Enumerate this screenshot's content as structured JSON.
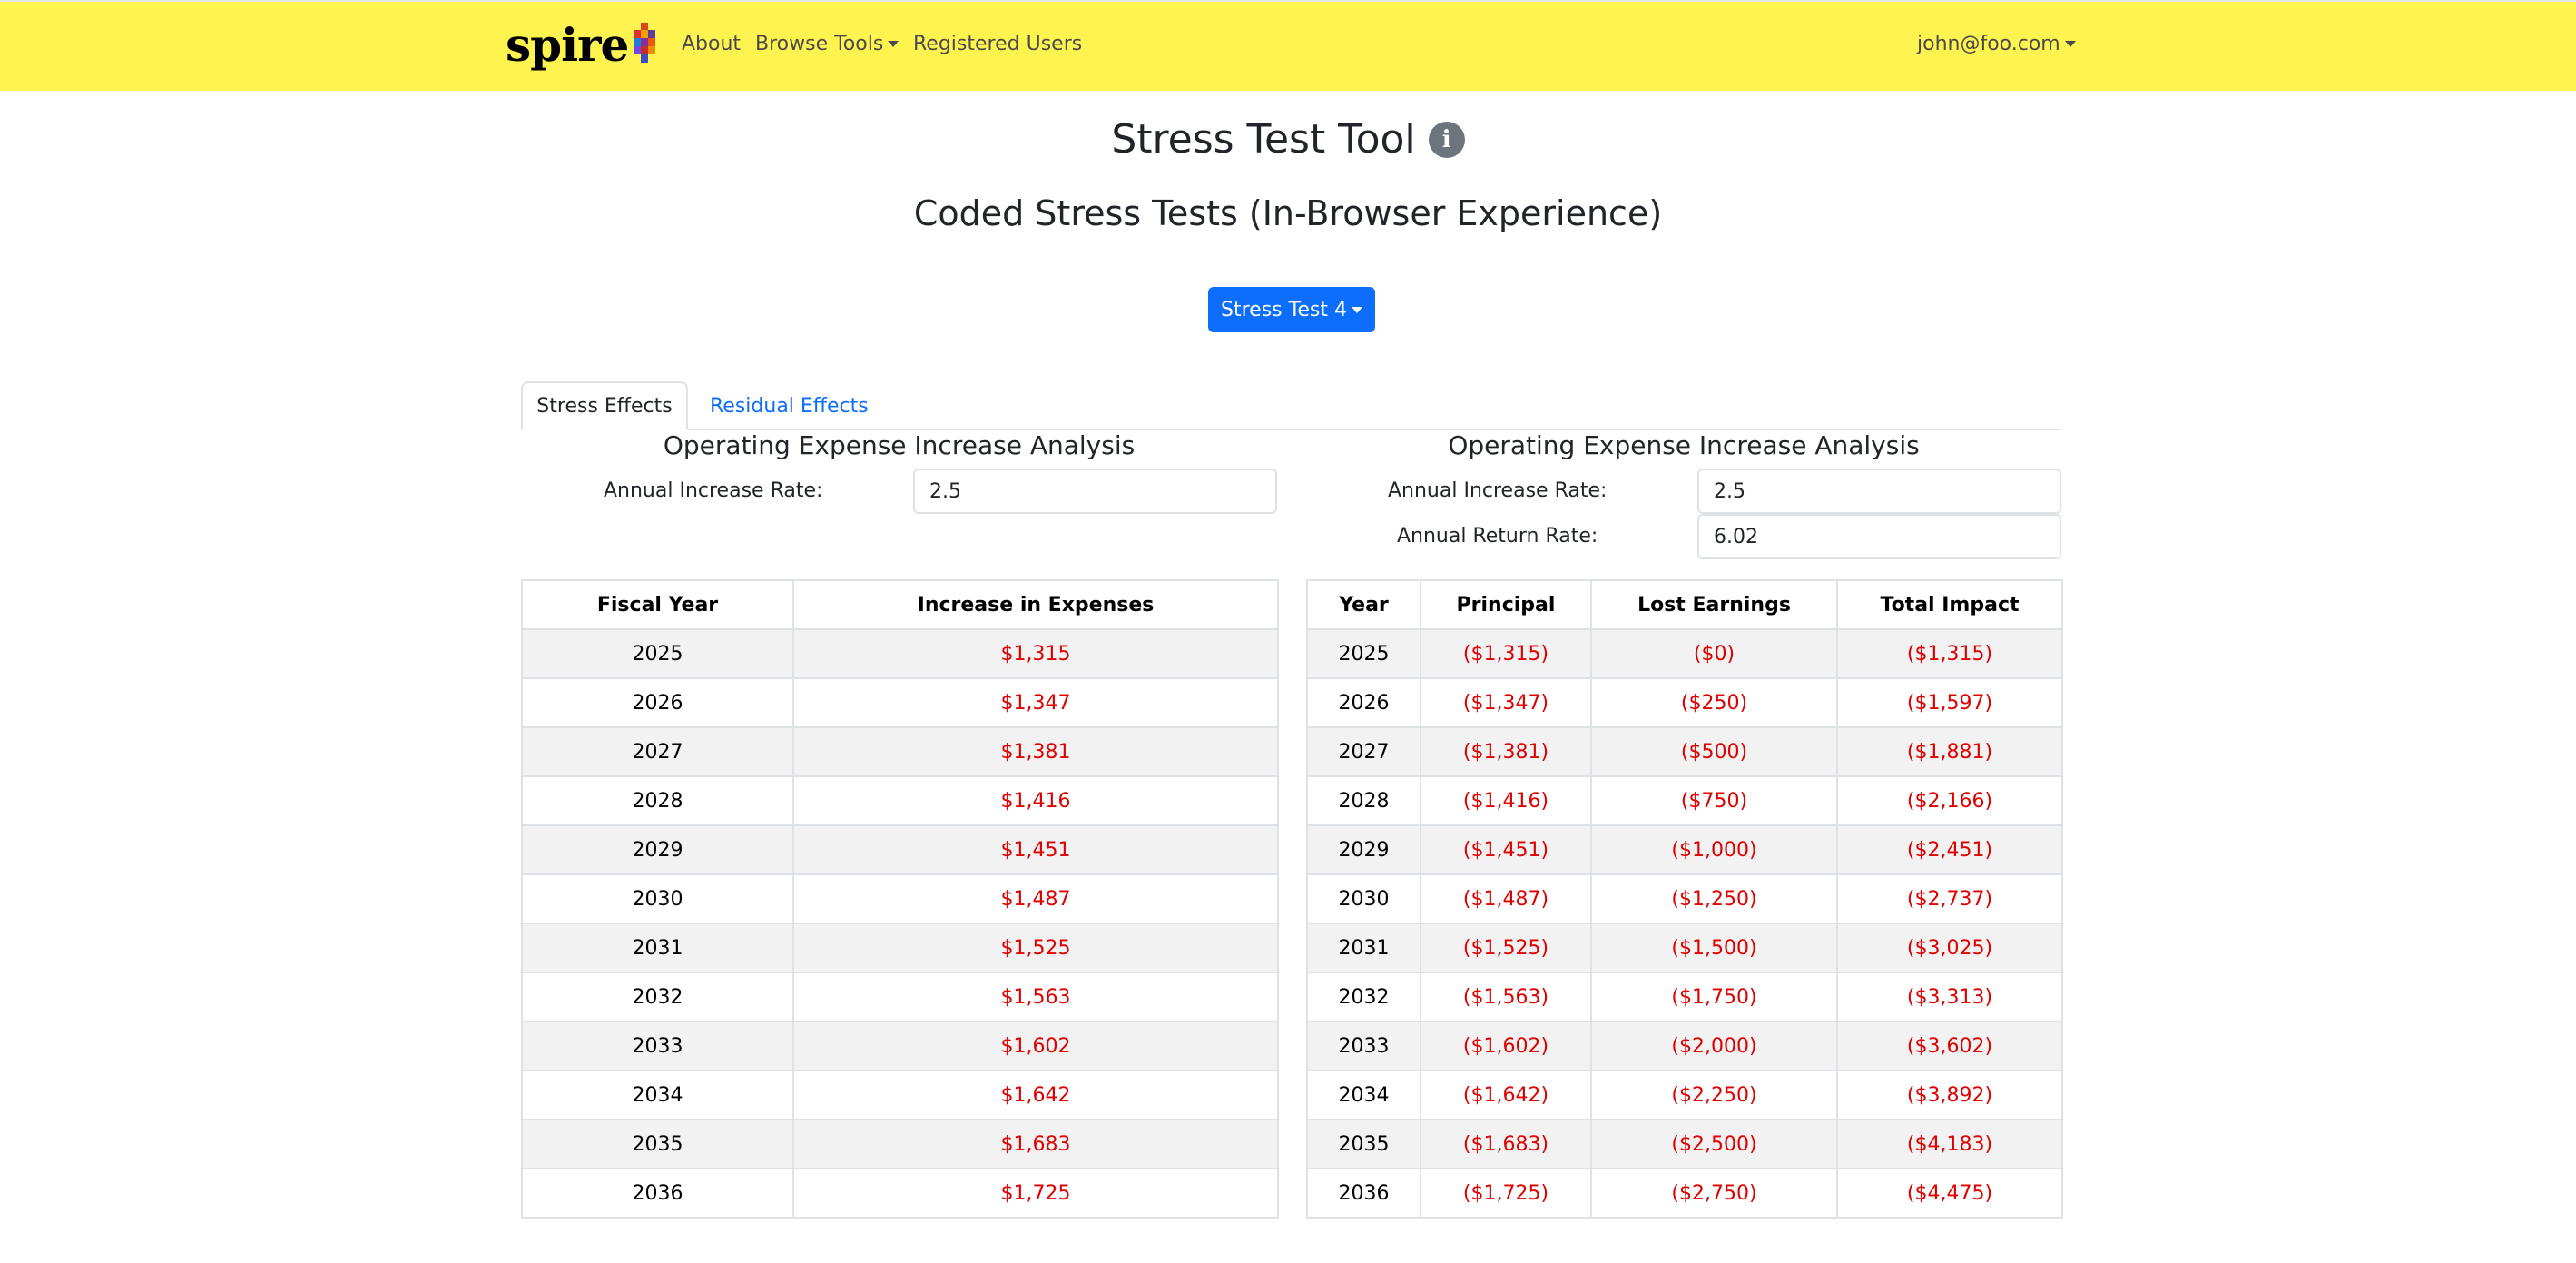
{
  "navbar": {
    "logo_text": "spire",
    "about": "About",
    "browse_tools": "Browse Tools",
    "registered_users": "Registered Users",
    "user_email": "john@foo.com",
    "background_color": "#fff44f"
  },
  "page": {
    "title": "Stress Test Tool",
    "info_glyph": "i",
    "subtitle": "Coded Stress Tests (In-Browser Experience)",
    "dropdown_label": "Stress Test 4"
  },
  "tabs": [
    {
      "label": "Stress Effects",
      "active": true
    },
    {
      "label": "Residual Effects",
      "active": false
    }
  ],
  "left_panel": {
    "title": "Operating Expense Increase Analysis",
    "annual_increase_rate_label": "Annual Increase Rate:",
    "annual_increase_rate_value": "2.5",
    "columns": [
      "Fiscal Year",
      "Increase in Expenses"
    ],
    "rows": [
      [
        "2025",
        "$1,315"
      ],
      [
        "2026",
        "$1,347"
      ],
      [
        "2027",
        "$1,381"
      ],
      [
        "2028",
        "$1,416"
      ],
      [
        "2029",
        "$1,451"
      ],
      [
        "2030",
        "$1,487"
      ],
      [
        "2031",
        "$1,525"
      ],
      [
        "2032",
        "$1,563"
      ],
      [
        "2033",
        "$1,602"
      ],
      [
        "2034",
        "$1,642"
      ],
      [
        "2035",
        "$1,683"
      ],
      [
        "2036",
        "$1,725"
      ]
    ]
  },
  "right_panel": {
    "title": "Operating Expense Increase Analysis",
    "annual_increase_rate_label": "Annual Increase Rate:",
    "annual_increase_rate_value": "2.5",
    "annual_return_rate_label": "Annual Return Rate:",
    "annual_return_rate_value": "6.02",
    "columns": [
      "Year",
      "Principal",
      "Lost Earnings",
      "Total Impact"
    ],
    "rows": [
      [
        "2025",
        "($1,315)",
        "($0)",
        "($1,315)"
      ],
      [
        "2026",
        "($1,347)",
        "($250)",
        "($1,597)"
      ],
      [
        "2027",
        "($1,381)",
        "($500)",
        "($1,881)"
      ],
      [
        "2028",
        "($1,416)",
        "($750)",
        "($2,166)"
      ],
      [
        "2029",
        "($1,451)",
        "($1,000)",
        "($2,451)"
      ],
      [
        "2030",
        "($1,487)",
        "($1,250)",
        "($2,737)"
      ],
      [
        "2031",
        "($1,525)",
        "($1,500)",
        "($3,025)"
      ],
      [
        "2032",
        "($1,563)",
        "($1,750)",
        "($3,313)"
      ],
      [
        "2033",
        "($1,602)",
        "($2,000)",
        "($3,602)"
      ],
      [
        "2034",
        "($1,642)",
        "($2,250)",
        "($3,892)"
      ],
      [
        "2035",
        "($1,683)",
        "($2,500)",
        "($4,183)"
      ],
      [
        "2036",
        "($1,725)",
        "($2,750)",
        "($4,475)"
      ]
    ]
  },
  "colors": {
    "primary": "#0d6efd",
    "negative": "#e00000",
    "stripe": "#f2f2f2"
  }
}
